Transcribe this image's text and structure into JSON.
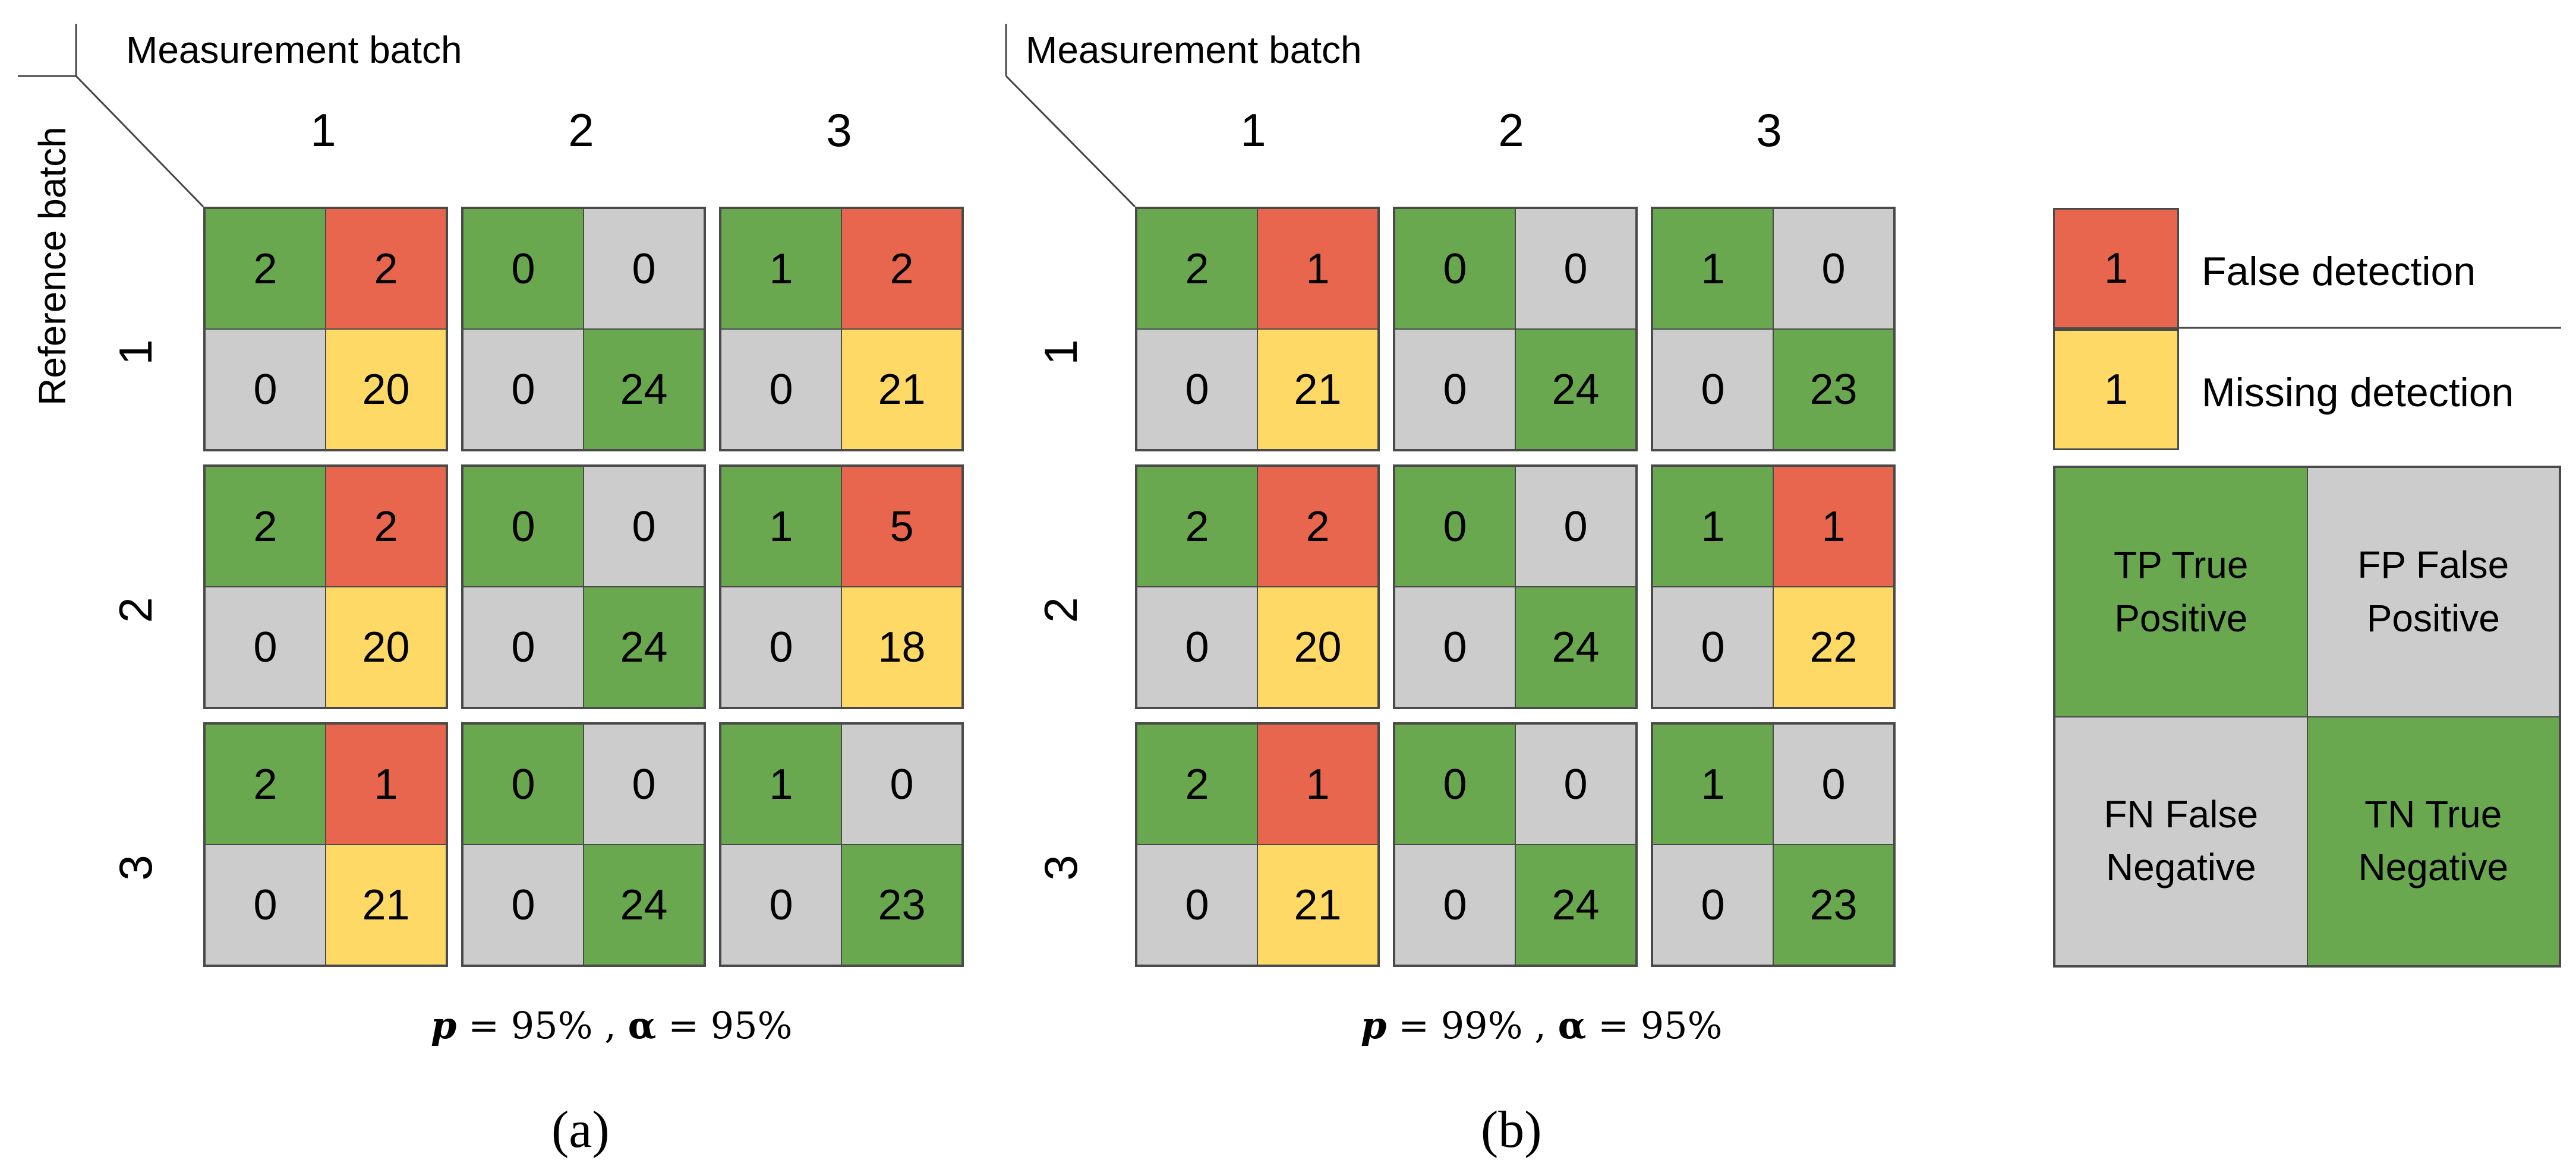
{
  "axes": {
    "measurement_batch": "Measurement batch",
    "reference_batch": "Reference batch",
    "batch_labels": [
      "1",
      "2",
      "3"
    ]
  },
  "colors": {
    "green": "#6aa84f",
    "red": "#e8664d",
    "yellow": "#ffd966",
    "gray": "#cccccc"
  },
  "panels": [
    {
      "id": "a",
      "sublabel": "(a)",
      "caption": {
        "p_symbol": "p",
        "p_text": " = 95% , ",
        "alpha_symbol": "α",
        "alpha_text": " = 95%"
      },
      "matrices": [
        [
          [
            [
              "2",
              "2"
            ],
            [
              "0",
              "20"
            ]
          ],
          [
            [
              "0",
              "0"
            ],
            [
              "0",
              "24"
            ]
          ],
          [
            [
              "1",
              "2"
            ],
            [
              "0",
              "21"
            ]
          ]
        ],
        [
          [
            [
              "2",
              "2"
            ],
            [
              "0",
              "20"
            ]
          ],
          [
            [
              "0",
              "0"
            ],
            [
              "0",
              "24"
            ]
          ],
          [
            [
              "1",
              "5"
            ],
            [
              "0",
              "18"
            ]
          ]
        ],
        [
          [
            [
              "2",
              "1"
            ],
            [
              "0",
              "21"
            ]
          ],
          [
            [
              "0",
              "0"
            ],
            [
              "0",
              "24"
            ]
          ],
          [
            [
              "1",
              "0"
            ],
            [
              "0",
              "23"
            ]
          ]
        ]
      ],
      "colors": [
        [
          [
            [
              "g",
              "r"
            ],
            [
              "n",
              "y"
            ]
          ],
          [
            [
              "g",
              "n"
            ],
            [
              "n",
              "g"
            ]
          ],
          [
            [
              "g",
              "r"
            ],
            [
              "n",
              "y"
            ]
          ]
        ],
        [
          [
            [
              "g",
              "r"
            ],
            [
              "n",
              "y"
            ]
          ],
          [
            [
              "g",
              "n"
            ],
            [
              "n",
              "g"
            ]
          ],
          [
            [
              "g",
              "r"
            ],
            [
              "n",
              "y"
            ]
          ]
        ],
        [
          [
            [
              "g",
              "r"
            ],
            [
              "n",
              "y"
            ]
          ],
          [
            [
              "g",
              "n"
            ],
            [
              "n",
              "g"
            ]
          ],
          [
            [
              "g",
              "n"
            ],
            [
              "n",
              "g"
            ]
          ]
        ]
      ]
    },
    {
      "id": "b",
      "sublabel": "(b)",
      "caption": {
        "p_symbol": "p",
        "p_text": " = 99% , ",
        "alpha_symbol": "α",
        "alpha_text": " = 95%"
      },
      "matrices": [
        [
          [
            [
              "2",
              "1"
            ],
            [
              "0",
              "21"
            ]
          ],
          [
            [
              "0",
              "0"
            ],
            [
              "0",
              "24"
            ]
          ],
          [
            [
              "1",
              "0"
            ],
            [
              "0",
              "23"
            ]
          ]
        ],
        [
          [
            [
              "2",
              "2"
            ],
            [
              "0",
              "20"
            ]
          ],
          [
            [
              "0",
              "0"
            ],
            [
              "0",
              "24"
            ]
          ],
          [
            [
              "1",
              "1"
            ],
            [
              "0",
              "22"
            ]
          ]
        ],
        [
          [
            [
              "2",
              "1"
            ],
            [
              "0",
              "21"
            ]
          ],
          [
            [
              "0",
              "0"
            ],
            [
              "0",
              "24"
            ]
          ],
          [
            [
              "1",
              "0"
            ],
            [
              "0",
              "23"
            ]
          ]
        ]
      ],
      "colors": [
        [
          [
            [
              "g",
              "r"
            ],
            [
              "n",
              "y"
            ]
          ],
          [
            [
              "g",
              "n"
            ],
            [
              "n",
              "g"
            ]
          ],
          [
            [
              "g",
              "n"
            ],
            [
              "n",
              "g"
            ]
          ]
        ],
        [
          [
            [
              "g",
              "r"
            ],
            [
              "n",
              "y"
            ]
          ],
          [
            [
              "g",
              "n"
            ],
            [
              "n",
              "g"
            ]
          ],
          [
            [
              "g",
              "r"
            ],
            [
              "n",
              "y"
            ]
          ]
        ],
        [
          [
            [
              "g",
              "r"
            ],
            [
              "n",
              "y"
            ]
          ],
          [
            [
              "g",
              "n"
            ],
            [
              "n",
              "g"
            ]
          ],
          [
            [
              "g",
              "n"
            ],
            [
              "n",
              "g"
            ]
          ]
        ]
      ]
    }
  ],
  "legend": {
    "false_detection": {
      "value": "1",
      "label": "False detection"
    },
    "missing_detection": {
      "value": "1",
      "label": "Missing detection"
    },
    "key": {
      "tp": {
        "abbr": "TP True",
        "line2": "Positive"
      },
      "fp": {
        "abbr": "FP False",
        "line2": "Positive"
      },
      "fn": {
        "abbr": "FN False",
        "line2": "Negative"
      },
      "tn": {
        "abbr": "TN True",
        "line2": "Negative"
      }
    }
  }
}
